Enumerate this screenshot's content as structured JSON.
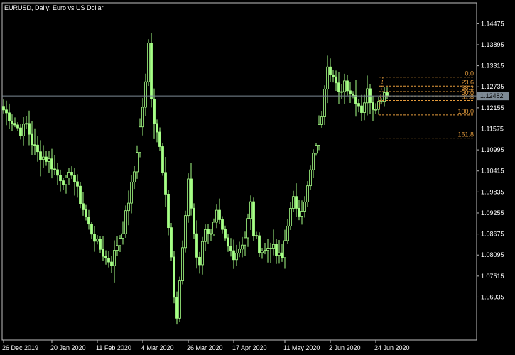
{
  "colors": {
    "background": "#000000",
    "axis_frame": "#c0c0c0",
    "text": "#ffffff",
    "candle": "#a6ff86",
    "fibo": "#e49b3c",
    "price_line": "#7d8a95",
    "current_price_label_bg": "#7d8a95",
    "current_price_label_text": "#000000"
  },
  "chart_data": {
    "type": "candlestick",
    "title": "EURUSD, Daily:  Euro vs US Dollar",
    "ylim": [
      1.0575,
      1.1505
    ],
    "y_ticks": [
      "1.14475",
      "1.13895",
      "1.13315",
      "1.12735",
      "1.12155",
      "1.11575",
      "1.10995",
      "1.10415",
      "1.09835",
      "1.09255",
      "1.08675",
      "1.08095",
      "1.07515",
      "1.06935"
    ],
    "x_ticks": [
      "26 Dec 2019",
      "20 Jan 2020",
      "11 Feb 2020",
      "4 Mar 2020",
      "26 Mar 2020",
      "17 Apr 2020",
      "11 May 2020",
      "2 Jun 2020",
      "24 Jun 2020"
    ],
    "x_tick_index": [
      0,
      17,
      33,
      49,
      65,
      81,
      99,
      115,
      131
    ],
    "current_price": "1.12482",
    "fibonacci": {
      "high": 1.13,
      "low": 1.1196,
      "levels": [
        {
          "label": "0.0",
          "ratio": 0.0
        },
        {
          "label": "23.6",
          "ratio": 0.236
        },
        {
          "label": "38.2",
          "ratio": 0.382
        },
        {
          "label": "50.0",
          "ratio": 0.5
        },
        {
          "label": "61.8",
          "ratio": 0.618
        },
        {
          "label": "100.0",
          "ratio": 1.0
        },
        {
          "label": "161.8",
          "ratio": 1.618
        }
      ],
      "start_index": 132
    },
    "anchors": [
      [
        0,
        1.121
      ],
      [
        3,
        1.118
      ],
      [
        6,
        1.115
      ],
      [
        8,
        1.117
      ],
      [
        10,
        1.112
      ],
      [
        12,
        1.109
      ],
      [
        16,
        1.107
      ],
      [
        19,
        1.103
      ],
      [
        22,
        1.101
      ],
      [
        24,
        1.104
      ],
      [
        27,
        1.096
      ],
      [
        30,
        1.089
      ],
      [
        33,
        1.084
      ],
      [
        36,
        1.08
      ],
      [
        38,
        1.079
      ],
      [
        40,
        1.084
      ],
      [
        42,
        1.088
      ],
      [
        44,
        1.096
      ],
      [
        46,
        1.104
      ],
      [
        48,
        1.116
      ],
      [
        50,
        1.128
      ],
      [
        51,
        1.139
      ],
      [
        52,
        1.125
      ],
      [
        53,
        1.118
      ],
      [
        55,
        1.112
      ],
      [
        57,
        1.098
      ],
      [
        58,
        1.088
      ],
      [
        59,
        1.08
      ],
      [
        60,
        1.068
      ],
      [
        61,
        1.064
      ],
      [
        62,
        1.074
      ],
      [
        64,
        1.092
      ],
      [
        65,
        1.101
      ],
      [
        66,
        1.094
      ],
      [
        67,
        1.087
      ],
      [
        68,
        1.081
      ],
      [
        69,
        1.079
      ],
      [
        71,
        1.089
      ],
      [
        73,
        1.086
      ],
      [
        75,
        1.092
      ],
      [
        77,
        1.087
      ],
      [
        79,
        1.083
      ],
      [
        81,
        1.081
      ],
      [
        83,
        1.083
      ],
      [
        85,
        1.086
      ],
      [
        87,
        1.095
      ],
      [
        88,
        1.087
      ],
      [
        90,
        1.083
      ],
      [
        92,
        1.082
      ],
      [
        94,
        1.084
      ],
      [
        96,
        1.081
      ],
      [
        98,
        1.08
      ],
      [
        100,
        1.09
      ],
      [
        102,
        1.096
      ],
      [
        104,
        1.093
      ],
      [
        106,
        1.095
      ],
      [
        108,
        1.104
      ],
      [
        110,
        1.112
      ],
      [
        112,
        1.12
      ],
      [
        113,
        1.128
      ],
      [
        114,
        1.134
      ],
      [
        116,
        1.13
      ],
      [
        118,
        1.125
      ],
      [
        120,
        1.129
      ],
      [
        122,
        1.126
      ],
      [
        124,
        1.124
      ],
      [
        126,
        1.121
      ],
      [
        128,
        1.126
      ],
      [
        130,
        1.122
      ],
      [
        132,
        1.123
      ],
      [
        134,
        1.126
      ],
      [
        135,
        1.1248
      ]
    ],
    "candle_count": 136
  }
}
